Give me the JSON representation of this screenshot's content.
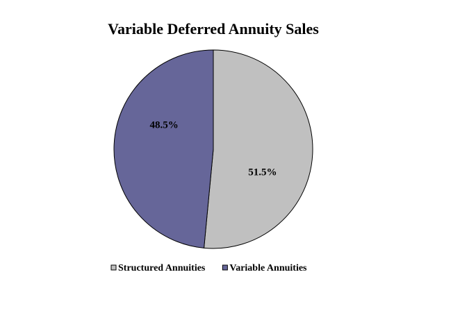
{
  "chart_data": {
    "type": "pie",
    "title": "Variable Deferred Annuity Sales",
    "categories": [
      "Structured Annuities",
      "Variable Annuities"
    ],
    "values": [
      51.5,
      48.5
    ],
    "value_labels": [
      "51.5%",
      "48.5%"
    ],
    "colors": [
      "#c0c0c0",
      "#666699"
    ],
    "legend": "bottom"
  }
}
